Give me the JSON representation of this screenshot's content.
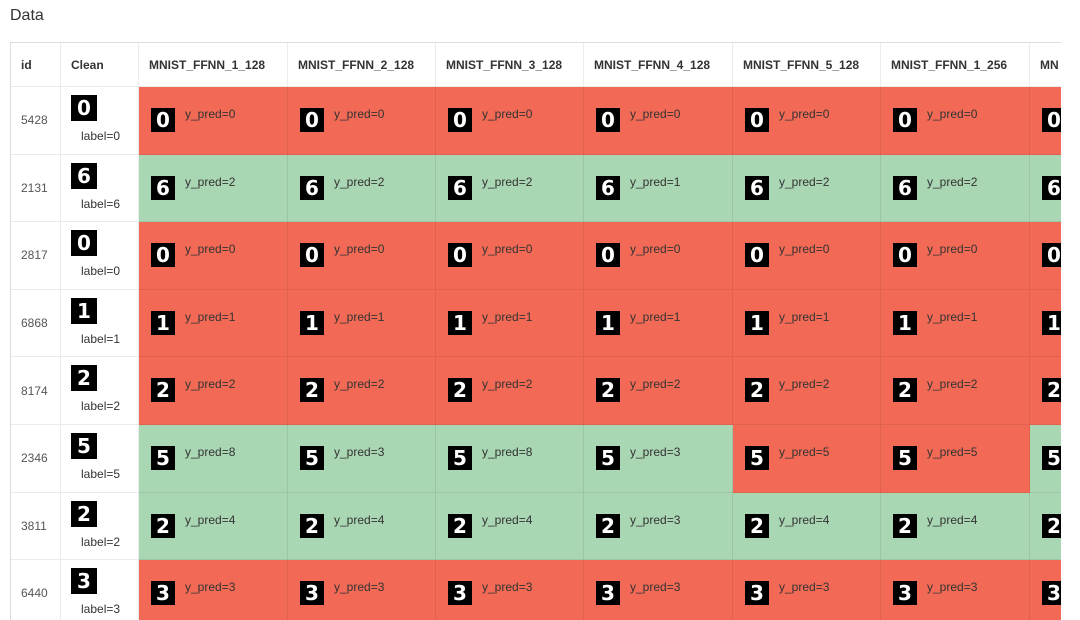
{
  "header": {
    "title": "Data"
  },
  "table": {
    "columns": [
      "id",
      "Clean",
      "MNIST_FFNN_1_128",
      "MNIST_FFNN_2_128",
      "MNIST_FFNN_3_128",
      "MNIST_FFNN_4_128",
      "MNIST_FFNN_5_128",
      "MNIST_FFNN_1_256",
      "MN"
    ],
    "colors": {
      "wrong": "#f26a55",
      "right": "#a9d6b3"
    },
    "rows": [
      {
        "id": "5428",
        "digit": "0",
        "label": "label=0",
        "preds": [
          {
            "text": "y_pred=0",
            "status": "wrong"
          },
          {
            "text": "y_pred=0",
            "status": "wrong"
          },
          {
            "text": "y_pred=0",
            "status": "wrong"
          },
          {
            "text": "y_pred=0",
            "status": "wrong"
          },
          {
            "text": "y_pred=0",
            "status": "wrong"
          },
          {
            "text": "y_pred=0",
            "status": "wrong"
          },
          {
            "status": "wrong"
          }
        ]
      },
      {
        "id": "2131",
        "digit": "6",
        "label": "label=6",
        "preds": [
          {
            "text": "y_pred=2",
            "status": "right"
          },
          {
            "text": "y_pred=2",
            "status": "right"
          },
          {
            "text": "y_pred=2",
            "status": "right"
          },
          {
            "text": "y_pred=1",
            "status": "right"
          },
          {
            "text": "y_pred=2",
            "status": "right"
          },
          {
            "text": "y_pred=2",
            "status": "right"
          },
          {
            "status": "right"
          }
        ]
      },
      {
        "id": "2817",
        "digit": "0",
        "label": "label=0",
        "preds": [
          {
            "text": "y_pred=0",
            "status": "wrong"
          },
          {
            "text": "y_pred=0",
            "status": "wrong"
          },
          {
            "text": "y_pred=0",
            "status": "wrong"
          },
          {
            "text": "y_pred=0",
            "status": "wrong"
          },
          {
            "text": "y_pred=0",
            "status": "wrong"
          },
          {
            "text": "y_pred=0",
            "status": "wrong"
          },
          {
            "status": "wrong"
          }
        ]
      },
      {
        "id": "6868",
        "digit": "1",
        "label": "label=1",
        "preds": [
          {
            "text": "y_pred=1",
            "status": "wrong"
          },
          {
            "text": "y_pred=1",
            "status": "wrong"
          },
          {
            "text": "y_pred=1",
            "status": "wrong"
          },
          {
            "text": "y_pred=1",
            "status": "wrong"
          },
          {
            "text": "y_pred=1",
            "status": "wrong"
          },
          {
            "text": "y_pred=1",
            "status": "wrong"
          },
          {
            "status": "wrong"
          }
        ]
      },
      {
        "id": "8174",
        "digit": "2",
        "label": "label=2",
        "preds": [
          {
            "text": "y_pred=2",
            "status": "wrong"
          },
          {
            "text": "y_pred=2",
            "status": "wrong"
          },
          {
            "text": "y_pred=2",
            "status": "wrong"
          },
          {
            "text": "y_pred=2",
            "status": "wrong"
          },
          {
            "text": "y_pred=2",
            "status": "wrong"
          },
          {
            "text": "y_pred=2",
            "status": "wrong"
          },
          {
            "status": "wrong"
          }
        ]
      },
      {
        "id": "2346",
        "digit": "5",
        "label": "label=5",
        "preds": [
          {
            "text": "y_pred=8",
            "status": "right"
          },
          {
            "text": "y_pred=3",
            "status": "right"
          },
          {
            "text": "y_pred=8",
            "status": "right"
          },
          {
            "text": "y_pred=3",
            "status": "right"
          },
          {
            "text": "y_pred=5",
            "status": "wrong"
          },
          {
            "text": "y_pred=5",
            "status": "wrong"
          },
          {
            "status": "right"
          }
        ]
      },
      {
        "id": "3811",
        "digit": "2",
        "label": "label=2",
        "preds": [
          {
            "text": "y_pred=4",
            "status": "right"
          },
          {
            "text": "y_pred=4",
            "status": "right"
          },
          {
            "text": "y_pred=4",
            "status": "right"
          },
          {
            "text": "y_pred=3",
            "status": "right"
          },
          {
            "text": "y_pred=4",
            "status": "right"
          },
          {
            "text": "y_pred=4",
            "status": "right"
          },
          {
            "status": "right"
          }
        ]
      },
      {
        "id": "6440",
        "digit": "3",
        "label": "label=3",
        "preds": [
          {
            "text": "y_pred=3",
            "status": "wrong"
          },
          {
            "text": "y_pred=3",
            "status": "wrong"
          },
          {
            "text": "y_pred=3",
            "status": "wrong"
          },
          {
            "text": "y_pred=3",
            "status": "wrong"
          },
          {
            "text": "y_pred=3",
            "status": "wrong"
          },
          {
            "text": "y_pred=3",
            "status": "wrong"
          },
          {
            "status": "wrong"
          }
        ]
      }
    ]
  }
}
